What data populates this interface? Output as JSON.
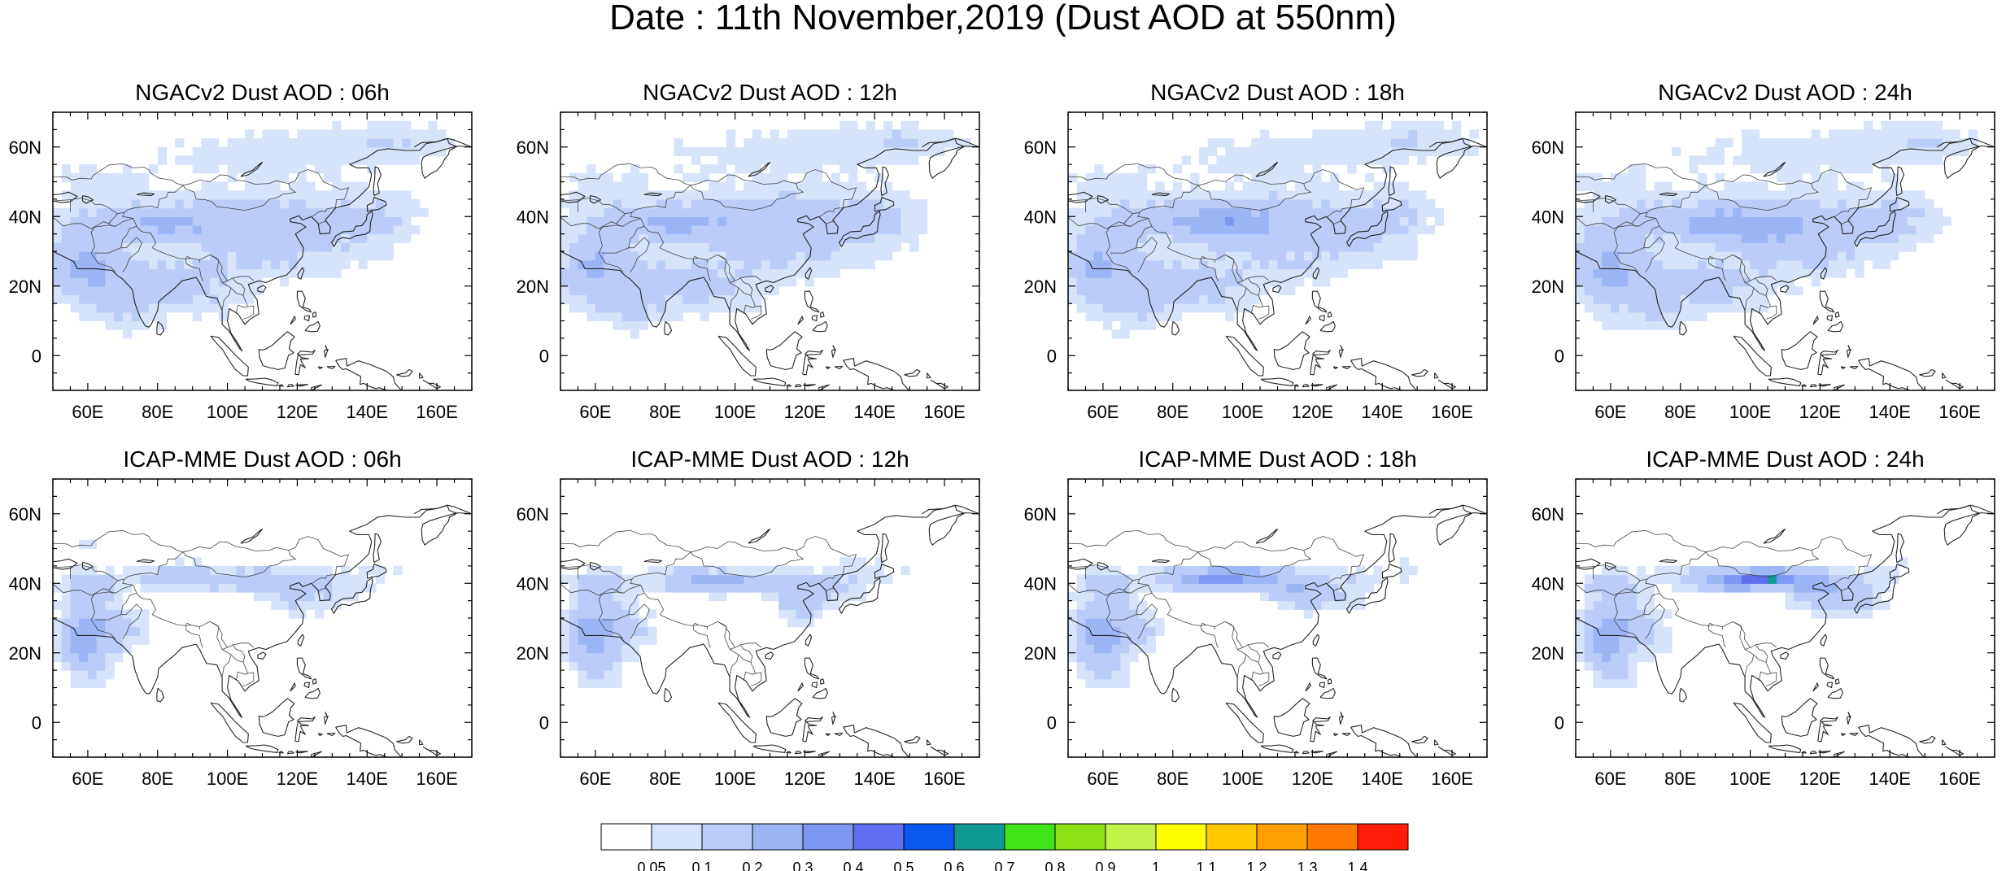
{
  "figure": {
    "title": "Date : 11th November,2019 (Dust AOD at 550nm)"
  },
  "axes": {
    "x_ticks": [
      "60E",
      "80E",
      "100E",
      "120E",
      "140E",
      "160E"
    ],
    "x_tick_values": [
      60,
      80,
      100,
      120,
      140,
      160
    ],
    "y_ticks": [
      "60N",
      "40N",
      "20N",
      "0"
    ],
    "y_tick_values": [
      60,
      40,
      20,
      0
    ],
    "lon_range": [
      50,
      170
    ],
    "lat_range": [
      -10,
      70
    ]
  },
  "panels": [
    {
      "title": "NGACv2 Dust AOD : 06h",
      "model": "NGACv2",
      "lead": "06h"
    },
    {
      "title": "NGACv2 Dust AOD : 12h",
      "model": "NGACv2",
      "lead": "12h"
    },
    {
      "title": "NGACv2 Dust AOD : 18h",
      "model": "NGACv2",
      "lead": "18h"
    },
    {
      "title": "NGACv2 Dust AOD : 24h",
      "model": "NGACv2",
      "lead": "24h"
    },
    {
      "title": "ICAP-MME Dust AOD : 06h",
      "model": "ICAP-MME",
      "lead": "06h"
    },
    {
      "title": "ICAP-MME Dust AOD : 12h",
      "model": "ICAP-MME",
      "lead": "12h"
    },
    {
      "title": "ICAP-MME Dust AOD : 18h",
      "model": "ICAP-MME",
      "lead": "18h"
    },
    {
      "title": "ICAP-MME Dust AOD : 24h",
      "model": "ICAP-MME",
      "lead": "24h"
    }
  ],
  "colorbar": {
    "labels": [
      "0.05",
      "0.1",
      "0.2",
      "0.3",
      "0.4",
      "0.5",
      "0.6",
      "0.7",
      "0.8",
      "0.9",
      "1",
      "1.1",
      "1.2",
      "1.3",
      "1.4"
    ],
    "colors": [
      "#ffffff",
      "#d7e3fb",
      "#b9cdf8",
      "#9bb6f5",
      "#7c98f2",
      "#5f6ff0",
      "#0c59f0",
      "#0f9a93",
      "#3fe319",
      "#8de015",
      "#c3f24a",
      "#ffff00",
      "#ffc800",
      "#ffa000",
      "#ff7800",
      "#ff1e0a"
    ]
  }
}
